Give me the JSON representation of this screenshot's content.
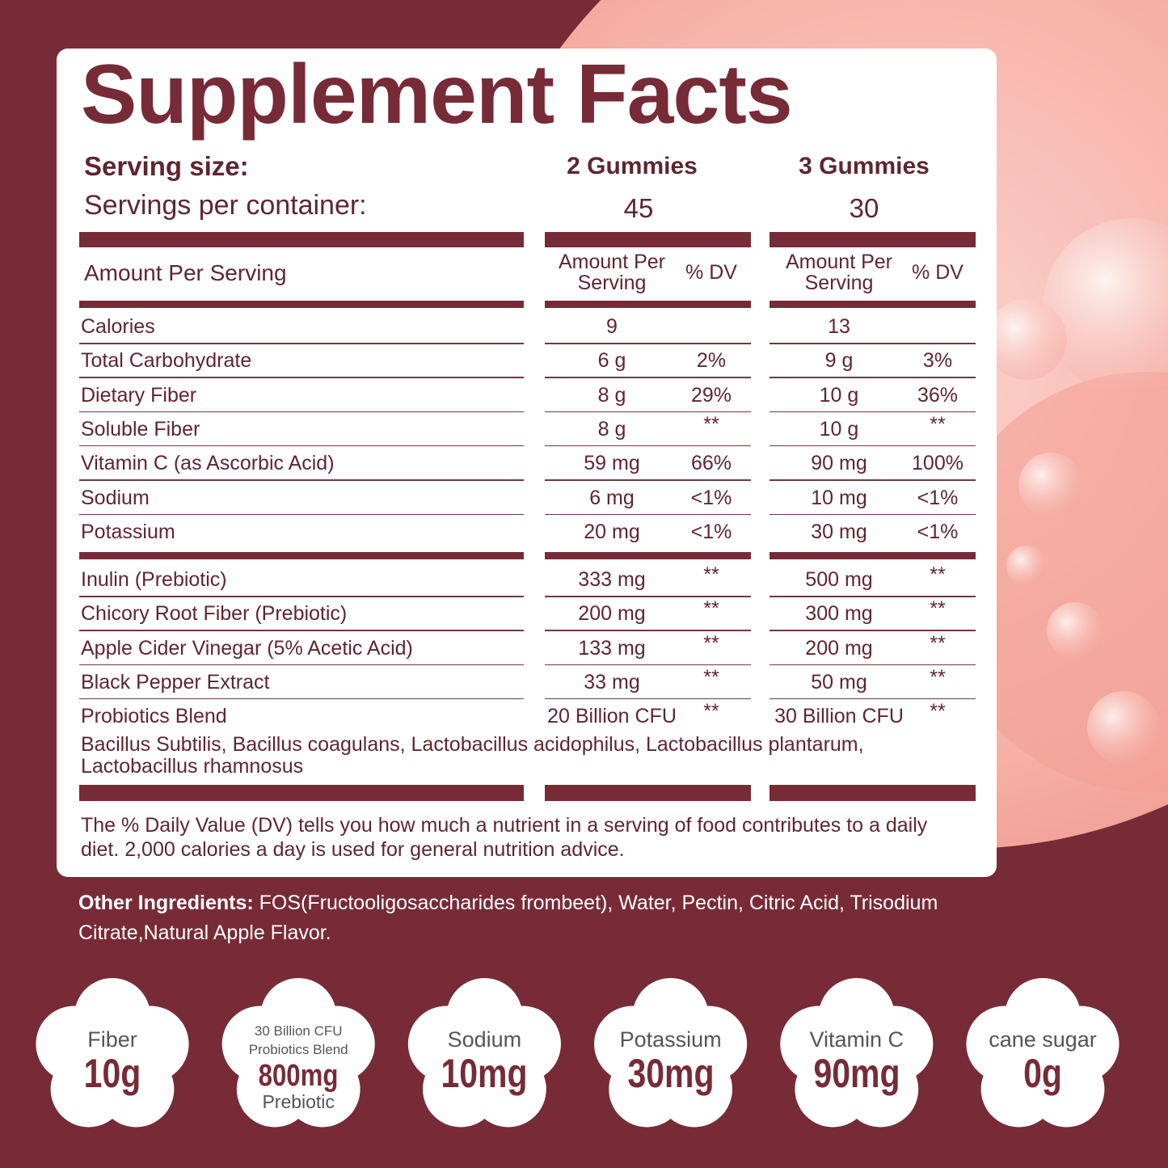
{
  "title": "Supplement Facts",
  "serving": {
    "size_label": "Serving size:",
    "size": [
      "2 Gummies",
      "3 Gummies"
    ],
    "per_container_label": "Servings per container:",
    "per_container": [
      "45",
      "30"
    ]
  },
  "header": {
    "label": "Amount Per Serving",
    "columns": [
      {
        "amount": "Amount Per Serving",
        "dv": "% DV"
      },
      {
        "amount": "Amount Per Serving",
        "dv": "% DV"
      }
    ]
  },
  "nutrients": [
    {
      "name": "Calories",
      "values": [
        {
          "amount": "9"
        },
        {
          "amount": "13"
        }
      ]
    },
    {
      "name": "Total Carbohydrate",
      "values": [
        {
          "amount": "6 g",
          "dv": "2%"
        },
        {
          "amount": "9 g",
          "dv": "3%"
        }
      ]
    },
    {
      "name": "Dietary Fiber",
      "values": [
        {
          "amount": "8 g",
          "dv": "29%"
        },
        {
          "amount": "10 g",
          "dv": "36%"
        }
      ]
    },
    {
      "name": "Soluble Fiber",
      "values": [
        {
          "amount": "8 g",
          "dv": "**"
        },
        {
          "amount": "10 g",
          "dv": "**"
        }
      ]
    },
    {
      "name": "Vitamin C (as Ascorbic Acid)",
      "values": [
        {
          "amount": "59 mg",
          "dv": "66%"
        },
        {
          "amount": "90 mg",
          "dv": "100%"
        }
      ]
    },
    {
      "name": "Sodium",
      "values": [
        {
          "amount": "6 mg",
          "dv": "<1%"
        },
        {
          "amount": "10 mg",
          "dv": "<1%"
        }
      ]
    },
    {
      "name": "Potassium",
      "values": [
        {
          "amount": "20 mg",
          "dv": "<1%"
        },
        {
          "amount": "30 mg",
          "dv": "<1%"
        }
      ]
    }
  ],
  "blend_rows": [
    {
      "name": "Inulin (Prebiotic)",
      "values": [
        {
          "amount": "333 mg",
          "dv": "**"
        },
        {
          "amount": "500 mg",
          "dv": "**"
        }
      ]
    },
    {
      "name": "Chicory Root Fiber (Prebiotic)",
      "values": [
        {
          "amount": "200 mg",
          "dv": "**"
        },
        {
          "amount": "300 mg",
          "dv": "**"
        }
      ]
    },
    {
      "name": "Apple Cider Vinegar (5% Acetic Acid)",
      "values": [
        {
          "amount": "133 mg",
          "dv": "**"
        },
        {
          "amount": "200 mg",
          "dv": "**"
        }
      ]
    },
    {
      "name": "Black Pepper Extract",
      "values": [
        {
          "amount": "33 mg",
          "dv": "**"
        },
        {
          "amount": "50 mg",
          "dv": "**"
        }
      ]
    },
    {
      "name": "Probiotics Blend",
      "values": [
        {
          "amount": "20 Billion CFU",
          "dv": "**"
        },
        {
          "amount": "30 Billion CFU",
          "dv": "**"
        }
      ]
    }
  ],
  "strains": "Bacillus Subtilis, Bacillus coagulans, Lactobacillus acidophilus, Lactobacillus plantarum, Lactobacillus rhamnosus",
  "footnote": "The % Daily Value (DV) tells you how much a nutrient in a serving of food contributes to a daily diet. 2,000 calories a day is used for general nutrition advice.",
  "other_ingredients": {
    "label": "Other Ingredients:",
    "text": "FOS(Fructooligosaccharides frombeet), Water, Pectin, Citric Acid, Trisodium Citrate,Natural Apple Flavor."
  },
  "badges": [
    {
      "lines": [
        "Fiber"
      ],
      "value": "10g"
    },
    {
      "lines": [
        "30 Billion CFU",
        "Probiotics Blend"
      ],
      "value": "800mg",
      "sub": "Prebiotic"
    },
    {
      "lines": [
        "Sodium"
      ],
      "value": "10mg"
    },
    {
      "lines": [
        "Potassium"
      ],
      "value": "30mg"
    },
    {
      "lines": [
        "Vitamin C"
      ],
      "value": "90mg"
    },
    {
      "lines": [
        "cane sugar"
      ],
      "value": "0g"
    }
  ]
}
